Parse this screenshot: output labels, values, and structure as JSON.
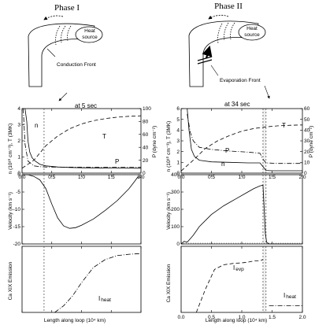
{
  "figure": {
    "phases": [
      {
        "title": "Phase I",
        "heat_label_1": "Heat",
        "heat_label_2": "source",
        "front_label": "Conduction Front",
        "time_label": "at 5 sec"
      },
      {
        "title": "Phase II",
        "heat_label_1": "Heat",
        "heat_label_2": "source",
        "front_label": "Evaporation Front",
        "time_label": "at 34 sec"
      }
    ],
    "ylabels": {
      "top_left": "n (10¹⁰ cm⁻³), T (3MK)",
      "top_right": "P (dyne cm⁻²)",
      "middle": "Velocity (km s⁻¹)",
      "bottom": "Ca XIX Emission"
    },
    "xlabel": "Length along loop (10⁴ km)",
    "curve_labels": {
      "n": "n",
      "T": "T",
      "P": "P",
      "I_heat": "I",
      "I_heat_sub": "heat",
      "I_evp": "I",
      "I_evp_sub": "evp"
    },
    "colors": {
      "ink": "#000000",
      "loop_fill": "#ffffff",
      "dotted": "#444444"
    }
  },
  "chart_data": [
    {
      "type": "line",
      "panel": "Phase I, top",
      "xlim": [
        0,
        2.0
      ],
      "x_ticks": [
        "0.0",
        "0.5",
        "1.0",
        "1.5",
        "2.0"
      ],
      "ylim_left": [
        0,
        4
      ],
      "y_ticks_left": [
        "0",
        "1",
        "2",
        "3",
        "4"
      ],
      "ylim_right": [
        0,
        100
      ],
      "y_ticks_right": [
        "0",
        "20",
        "40",
        "60",
        "80",
        "100"
      ],
      "series": [
        {
          "name": "n",
          "x": [
            0.05,
            0.08,
            0.1,
            0.13,
            0.17,
            0.22,
            0.3,
            0.4,
            0.6,
            0.8,
            1.0,
            1.5,
            2.0
          ],
          "y": [
            4.0,
            3.2,
            2.0,
            1.3,
            0.95,
            0.75,
            0.55,
            0.45,
            0.38,
            0.35,
            0.33,
            0.31,
            0.3
          ]
        },
        {
          "name": "T",
          "x": [
            0.0,
            0.2,
            0.4,
            0.6,
            0.8,
            1.0,
            1.2,
            1.4,
            1.6,
            1.8,
            2.0
          ],
          "y": [
            0.3,
            0.8,
            1.7,
            2.3,
            2.75,
            3.05,
            3.25,
            3.38,
            3.47,
            3.52,
            3.55
          ]
        },
        {
          "name": "P",
          "x": [
            0.02,
            0.05,
            0.1,
            0.2,
            0.3,
            0.4,
            0.6,
            1.0,
            2.0
          ],
          "y": [
            4.0,
            1.8,
            0.75,
            0.45,
            0.4,
            0.38,
            0.37,
            0.37,
            0.37
          ]
        }
      ],
      "markers_x": [
        0.37
      ]
    },
    {
      "type": "line",
      "panel": "Phase I, middle",
      "xlim": [
        0,
        2.0
      ],
      "ylim": [
        -20,
        0
      ],
      "y_ticks": [
        "-20",
        "-15",
        "-10",
        "-5",
        "0"
      ],
      "series": [
        {
          "name": "velocity",
          "x": [
            0.0,
            0.1,
            0.2,
            0.3,
            0.4,
            0.5,
            0.6,
            0.7,
            0.8,
            0.9,
            1.0,
            1.2,
            1.4,
            1.6,
            1.8,
            1.9,
            1.95,
            2.0
          ],
          "y": [
            0.5,
            0.0,
            -0.5,
            -1.5,
            -4.0,
            -8.5,
            -12.5,
            -14.8,
            -15.5,
            -15.3,
            -14.6,
            -12.8,
            -10.3,
            -7.5,
            -4.0,
            -1.8,
            -0.6,
            -0.8
          ]
        }
      ],
      "markers_x": [
        0.37
      ]
    },
    {
      "type": "line",
      "panel": "Phase I, bottom",
      "xlim": [
        0,
        2.0
      ],
      "series": [
        {
          "name": "I heat",
          "x": [
            0.55,
            0.7,
            0.85,
            1.0,
            1.2,
            1.4,
            1.6,
            1.8,
            2.0
          ],
          "y": [
            0.0,
            0.1,
            0.25,
            0.45,
            0.68,
            0.8,
            0.86,
            0.88,
            0.89
          ]
        }
      ],
      "markers_x": [
        0.37
      ]
    },
    {
      "type": "line",
      "panel": "Phase II, top",
      "xlim": [
        0,
        2.0
      ],
      "x_ticks": [
        "0.0",
        "0.5",
        "1.0",
        "1.5",
        "2.0"
      ],
      "ylim_left": [
        0,
        6
      ],
      "y_ticks_left": [
        "0",
        "1",
        "2",
        "3",
        "4",
        "5",
        "6"
      ],
      "ylim_right": [
        0,
        60
      ],
      "y_ticks_right": [
        "0",
        "10",
        "20",
        "30",
        "40",
        "50",
        "60"
      ],
      "series": [
        {
          "name": "n",
          "x": [
            0.1,
            0.13,
            0.17,
            0.22,
            0.3,
            0.5,
            0.8,
            1.1,
            1.3,
            1.35,
            1.4,
            1.5,
            2.0
          ],
          "y": [
            6.0,
            4.0,
            2.2,
            1.55,
            1.2,
            1.05,
            1.0,
            0.95,
            0.95,
            0.6,
            0.25,
            0.22,
            0.22
          ]
        },
        {
          "name": "T",
          "x": [
            0.0,
            0.2,
            0.4,
            0.6,
            0.8,
            1.0,
            1.2,
            1.4,
            1.6,
            1.8,
            2.0
          ],
          "y": [
            0.2,
            1.2,
            2.3,
            3.0,
            3.5,
            3.9,
            4.15,
            4.3,
            4.4,
            4.45,
            4.48
          ]
        },
        {
          "name": "P",
          "x": [
            0.1,
            0.15,
            0.2,
            0.3,
            0.5,
            0.8,
            1.1,
            1.3,
            1.35,
            1.4,
            1.6,
            2.0
          ],
          "y": [
            5.5,
            3.8,
            3.0,
            2.4,
            2.2,
            2.05,
            1.95,
            1.85,
            1.3,
            0.95,
            0.9,
            0.9
          ]
        }
      ],
      "markers_x": [
        1.35,
        1.4
      ]
    },
    {
      "type": "line",
      "panel": "Phase II, middle",
      "xlim": [
        0,
        2.0
      ],
      "ylim": [
        0,
        400
      ],
      "y_ticks": [
        "0",
        "100",
        "200",
        "300",
        "400"
      ],
      "series": [
        {
          "name": "velocity",
          "x": [
            0.0,
            0.05,
            0.1,
            0.15,
            0.2,
            0.3,
            0.5,
            0.7,
            0.9,
            1.1,
            1.2,
            1.3,
            1.35,
            1.37,
            1.39,
            1.41,
            1.45,
            1.5,
            2.0
          ],
          "y": [
            0,
            15,
            10,
            30,
            50,
            100,
            170,
            220,
            260,
            300,
            320,
            335,
            340,
            200,
            60,
            10,
            0,
            0,
            0
          ]
        }
      ],
      "markers_x": [
        1.35,
        1.4
      ]
    },
    {
      "type": "line",
      "panel": "Phase II, bottom",
      "xlim": [
        0,
        2.0
      ],
      "x_ticks": [
        "0.0",
        "0.5",
        "1.0",
        "1.5",
        "2.0"
      ],
      "series": [
        {
          "name": "I evp",
          "x": [
            0.25,
            0.4,
            0.55,
            0.7,
            0.85,
            1.0,
            1.1,
            1.2,
            1.3,
            1.35
          ],
          "y": [
            0.0,
            0.35,
            0.65,
            0.72,
            0.74,
            0.75,
            0.76,
            0.78,
            0.78,
            0.8
          ]
        },
        {
          "name": "I heat",
          "x": [
            1.45,
            1.6,
            1.8,
            2.0
          ],
          "y": [
            0.1,
            0.1,
            0.1,
            0.1
          ]
        }
      ],
      "markers_x": [
        1.35,
        1.4
      ]
    }
  ]
}
